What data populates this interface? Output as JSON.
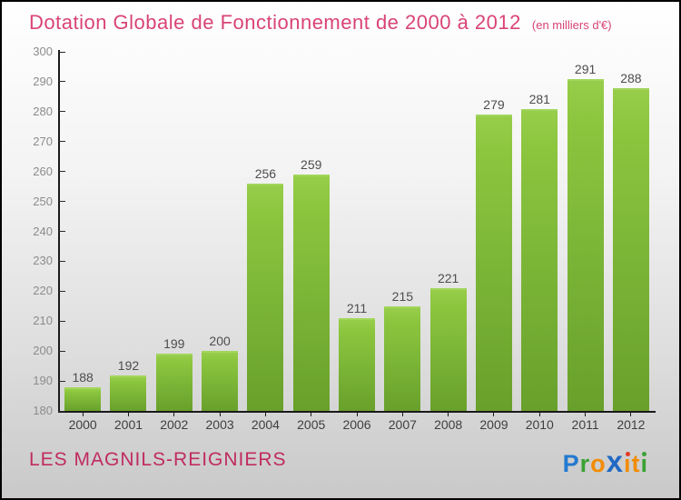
{
  "title": "Dotation Globale de Fonctionnement de 2000 à 2012",
  "subtitle": "(en milliers d'€)",
  "footer": {
    "place": "LES MAGNILS-REIGNIERS"
  },
  "logo": {
    "name": "Proxiti",
    "letters": [
      {
        "ch": "P",
        "color": "#2379cf"
      },
      {
        "ch": "r",
        "color": "#3aa233"
      },
      {
        "ch": "o",
        "color": "#f28c00"
      },
      {
        "ch": "x",
        "color": "#2069c4",
        "big": true
      },
      {
        "ch": "i",
        "color": "#f28c00",
        "dot": "#e23b22"
      },
      {
        "ch": "t",
        "color": "#f28c00"
      },
      {
        "ch": "i",
        "color": "#3aa233",
        "dot": "#3aa233"
      }
    ]
  },
  "colors": {
    "title": "#d94476",
    "place": "#c02b60",
    "bar_top": "#8cc63f",
    "bar_bottom": "#68a02b",
    "axis": "#1a1a1a",
    "y_tick_label": "#8c8c8c",
    "x_tick_label": "#3f3f3f",
    "value_label": "#4d4d4d"
  },
  "chart_data": {
    "type": "bar",
    "title": "Dotation Globale de Fonctionnement de 2000 à 2012",
    "subtitle": "(en milliers d'€)",
    "categories": [
      "2000",
      "2001",
      "2002",
      "2003",
      "2004",
      "2005",
      "2006",
      "2007",
      "2008",
      "2009",
      "2010",
      "2011",
      "2012"
    ],
    "values": [
      188,
      192,
      199,
      200,
      256,
      259,
      211,
      215,
      221,
      279,
      281,
      291,
      288
    ],
    "xlabel": "",
    "ylabel": "",
    "ylim": [
      180,
      300
    ],
    "ytick_step": 10,
    "grid": false,
    "legend": null,
    "data_labels": true
  }
}
